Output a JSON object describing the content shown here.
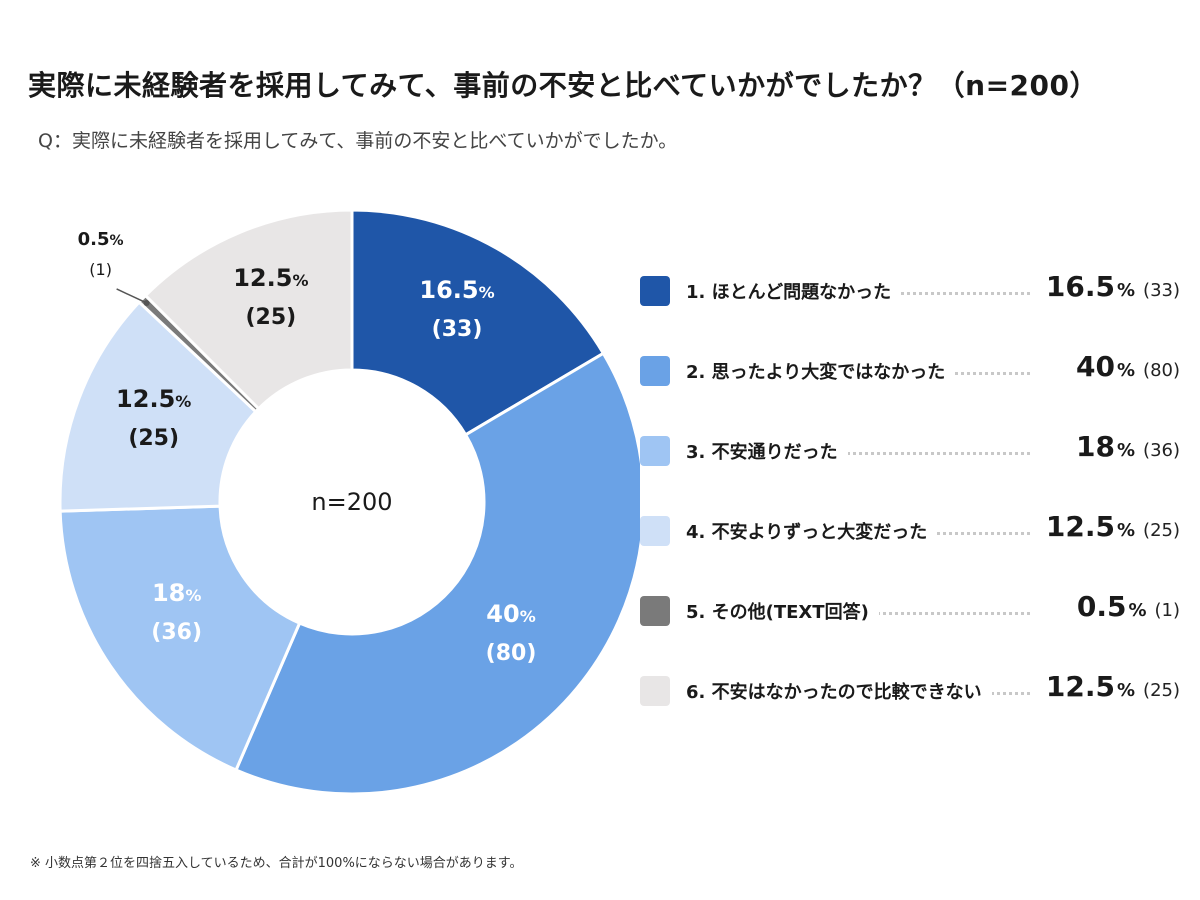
{
  "title": "実際に未経験者を採用してみて、事前の不安と比べていかがでしたか？（n=200）",
  "subtitle": "Q：実際に未経験者を採用してみて、事前の不安と比べていかがでしたか。",
  "footnote": "※ 小数点第２位を四捨五入しているため、合計が100%にならない場合があります。",
  "center_label": "n=200",
  "chart_data": {
    "type": "pie",
    "style": "donut",
    "title": "実際に未経験者を採用してみて、事前の不安と比べていかがでしたか？（n=200）",
    "total": 200,
    "legend_position": "right",
    "slices": [
      {
        "label": "1. ほとんど問題なかった",
        "value": 16.5,
        "count": 33,
        "pct_text": "16.5",
        "count_text": "(33)",
        "color": "#1f56a8",
        "text_color": "#ffffff"
      },
      {
        "label": "2. 思ったより大変ではなかった",
        "value": 40,
        "count": 80,
        "pct_text": "40",
        "count_text": "(80)",
        "color": "#6aa2e6",
        "text_color": "#ffffff"
      },
      {
        "label": "3. 不安通りだった",
        "value": 18,
        "count": 36,
        "pct_text": "18",
        "count_text": "(36)",
        "color": "#9fc5f3",
        "text_color": "#ffffff"
      },
      {
        "label": "4. 不安よりずっと大変だった",
        "value": 12.5,
        "count": 25,
        "pct_text": "12.5",
        "count_text": "(25)",
        "color": "#cfe0f7",
        "text_color": "#1a1a1a"
      },
      {
        "label": "5. その他(TEXT回答)",
        "value": 0.5,
        "count": 1,
        "pct_text": "0.5",
        "count_text": "(1)",
        "color": "#7a7a7a",
        "text_color": "#1a1a1a"
      },
      {
        "label": "6. 不安はなかったので比較できない",
        "value": 12.5,
        "count": 25,
        "pct_text": "12.5",
        "count_text": "(25)",
        "color": "#e8e6e6",
        "text_color": "#1a1a1a"
      }
    ]
  }
}
